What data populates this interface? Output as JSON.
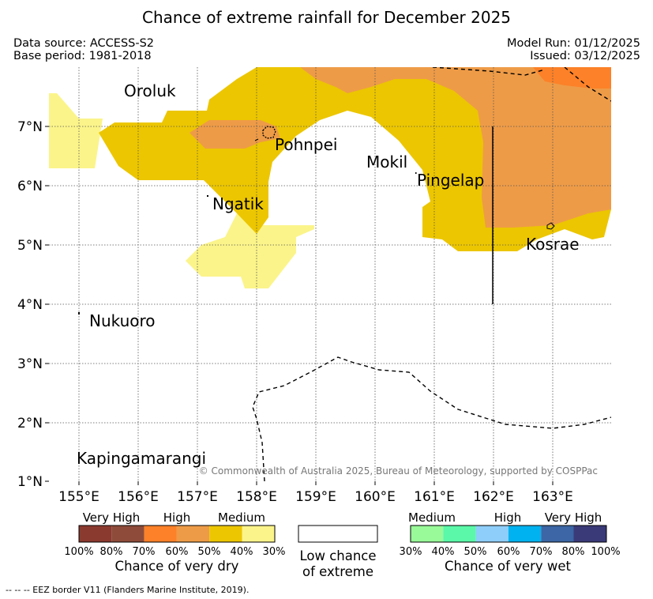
{
  "title": "Chance of extreme rainfall for December 2025",
  "meta": {
    "data_source": "Data source: ACCESS-S2",
    "base_period": "Base period: 1981-2018",
    "model_run": "Model Run: 01/12/2025",
    "issued": "Issued: 03/12/2025"
  },
  "map": {
    "lat_labels": [
      "7°N",
      "6°N",
      "5°N",
      "4°N",
      "3°N",
      "2°N",
      "1°N"
    ],
    "lon_labels": [
      "155°E",
      "156°E",
      "157°E",
      "158°E",
      "159°E",
      "160°E",
      "161°E",
      "162°E",
      "163°E"
    ],
    "places": {
      "oroluk": "Oroluk",
      "pohnpei": "Pohnpei",
      "mokil": "Mokil",
      "pingelap": "Pingelap",
      "ngatik": "Ngatik",
      "kosrae": "Kosrae",
      "nukuoro": "Nukuoro",
      "kapingamarangi": "Kapingamarangi"
    },
    "copyright": "© Commonwealth of Australia 2025, Bureau of Meteorology, supported by COSPPac"
  },
  "legend": {
    "dry": {
      "categories": [
        "Very High",
        "High",
        "Medium"
      ],
      "colors": [
        "#8b3a2f",
        "#8e4b3a",
        "#fc8128",
        "#ee9b47",
        "#ecc600",
        "#fbf48a"
      ],
      "ticks": [
        "100%",
        "80%",
        "70%",
        "60%",
        "50%",
        "40%",
        "30%"
      ],
      "caption": "Chance of very dry"
    },
    "low": {
      "caption_line1": "Low chance",
      "caption_line2": "of extreme"
    },
    "wet": {
      "categories": [
        "Medium",
        "High",
        "Very High"
      ],
      "colors": [
        "#98fa98",
        "#5af8a8",
        "#8ecefa",
        "#00b2ef",
        "#3c66a5",
        "#3a3a78"
      ],
      "ticks": [
        "30%",
        "40%",
        "50%",
        "60%",
        "70%",
        "80%",
        "100%"
      ],
      "caption": "Chance of very wet"
    }
  },
  "footnote": "--  --  -- EEZ border V11 (Flanders Marine Institute, 2019)."
}
